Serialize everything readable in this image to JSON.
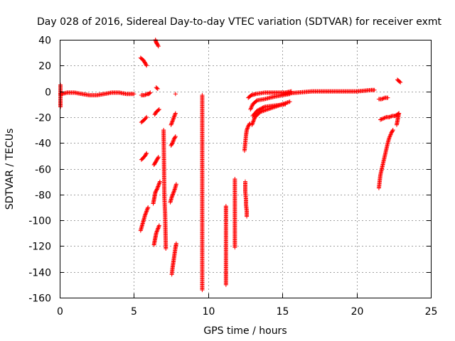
{
  "chart_data": {
    "type": "scatter",
    "title": "Day 028 of 2016, Sidereal Day-to-day VTEC variation (SDTVAR) for receiver exmt",
    "xlabel": "GPS time / hours",
    "ylabel": "SDTVAR / TECUs",
    "xlim": [
      0,
      25
    ],
    "ylim": [
      -160,
      40
    ],
    "xticks": [
      0,
      5,
      10,
      15,
      20,
      25
    ],
    "yticks": [
      -160,
      -140,
      -120,
      -100,
      -80,
      -60,
      -40,
      -20,
      0,
      20,
      40
    ],
    "grid": true,
    "marker": "+",
    "color": "#ff0000",
    "segments": [
      {
        "x": [
          0.05,
          0.15,
          0.5,
          1.0,
          1.5,
          2.0,
          2.5,
          3.0,
          3.5,
          4.0,
          4.5,
          5.0
        ],
        "y": [
          -2,
          -2,
          -1,
          -1,
          -2,
          -3,
          -3,
          -2,
          -1,
          -1,
          -2,
          -2
        ]
      },
      {
        "x": [
          0.05,
          0.05,
          0.05,
          0.05
        ],
        "y": [
          5,
          -5,
          -9,
          -12
        ]
      },
      {
        "x": [
          5.5,
          5.7,
          5.9,
          6.0,
          6.1
        ],
        "y": [
          -3,
          -3,
          -2,
          -2,
          -1
        ]
      },
      {
        "x": [
          5.45,
          5.55,
          5.65,
          5.75,
          5.85
        ],
        "y": [
          26,
          25,
          24,
          22,
          20
        ]
      },
      {
        "x": [
          6.45,
          6.5,
          6.55,
          6.65
        ],
        "y": [
          40,
          38,
          37,
          35
        ]
      },
      {
        "x": [
          5.5,
          5.6,
          5.7,
          5.85
        ],
        "y": [
          -24,
          -23,
          -22,
          -20
        ]
      },
      {
        "x": [
          5.5,
          5.6,
          5.75,
          5.85
        ],
        "y": [
          -53,
          -52,
          -50,
          -48
        ]
      },
      {
        "x": [
          5.45,
          5.55,
          5.65,
          5.75,
          5.85,
          5.95
        ],
        "y": [
          -108,
          -104,
          -100,
          -96,
          -93,
          -90
        ]
      },
      {
        "x": [
          6.5,
          6.6
        ],
        "y": [
          3,
          2
        ]
      },
      {
        "x": [
          6.4,
          6.5,
          6.6,
          6.7
        ],
        "y": [
          -18,
          -16,
          -15,
          -14
        ]
      },
      {
        "x": [
          6.35,
          6.45,
          6.55,
          6.65
        ],
        "y": [
          -57,
          -55,
          -53,
          -51
        ]
      },
      {
        "x": [
          6.3,
          6.35,
          6.4,
          6.45,
          6.55,
          6.65,
          6.75
        ],
        "y": [
          -87,
          -84,
          -81,
          -78,
          -76,
          -73,
          -70
        ]
      },
      {
        "x": [
          6.35,
          6.4,
          6.45,
          6.5,
          6.6,
          6.7
        ],
        "y": [
          -119,
          -116,
          -113,
          -110,
          -107,
          -104
        ]
      },
      {
        "x": [
          7.0,
          7.05,
          7.1,
          7.15
        ],
        "y": [
          -30,
          -81,
          -95,
          -122
        ]
      },
      {
        "x": [
          7.5,
          7.6,
          7.7,
          7.8
        ],
        "y": [
          -26,
          -23,
          -20,
          -17
        ]
      },
      {
        "x": [
          7.5,
          7.6,
          7.7,
          7.8
        ],
        "y": [
          -42,
          -40,
          -37,
          -35
        ]
      },
      {
        "x": [
          7.45,
          7.55,
          7.65,
          7.75,
          7.85
        ],
        "y": [
          -86,
          -82,
          -79,
          -76,
          -72
        ]
      },
      {
        "x": [
          7.55,
          7.6,
          7.65,
          7.7,
          7.75,
          7.8,
          7.85
        ],
        "y": [
          -142,
          -137,
          -133,
          -129,
          -125,
          -121,
          -118
        ]
      },
      {
        "x": [
          7.8
        ],
        "y": [
          -2
        ]
      },
      {
        "x": [
          9.6,
          9.6,
          9.6,
          9.6,
          9.6,
          9.6
        ],
        "y": [
          -3,
          -24,
          -52,
          -64,
          -149,
          -154
        ]
      },
      {
        "x": [
          11.2,
          11.2,
          11.2,
          11.2,
          11.2,
          11.2,
          11.2
        ],
        "y": [
          -89,
          -93,
          -98,
          -134,
          -140,
          -145,
          -150
        ]
      },
      {
        "x": [
          11.8,
          11.8,
          11.8
        ],
        "y": [
          -68,
          -116,
          -121
        ]
      },
      {
        "x": [
          12.5,
          12.5,
          12.5,
          12.55,
          12.55,
          12.6,
          12.6
        ],
        "y": [
          -70,
          -74,
          -78,
          -84,
          -88,
          -93,
          -97
        ]
      },
      {
        "x": [
          12.45,
          12.5,
          12.55,
          12.6,
          12.7,
          12.8
        ],
        "y": [
          -46,
          -40,
          -34,
          -30,
          -27,
          -25
        ]
      },
      {
        "x": [
          12.7,
          12.9,
          13.2,
          13.8,
          14.5,
          15.2,
          15.6
        ],
        "y": [
          -5,
          -3,
          -2,
          -1,
          -1,
          -1,
          0
        ]
      },
      {
        "x": [
          12.85,
          13.0,
          13.3,
          13.8,
          14.5,
          15.0,
          15.5
        ],
        "y": [
          -14,
          -10,
          -7,
          -6,
          -4,
          -3,
          -2
        ]
      },
      {
        "x": [
          12.95,
          13.15,
          13.5,
          14.0,
          14.5,
          15.0,
          15.5
        ],
        "y": [
          -26,
          -20,
          -16,
          -14,
          -12,
          -10,
          -8
        ]
      },
      {
        "x": [
          13.0,
          13.3,
          13.8,
          14.5,
          15.2
        ],
        "y": [
          -19,
          -15,
          -12,
          -11,
          -10
        ]
      },
      {
        "x": [
          15.0,
          16.0,
          17.0,
          18.0,
          19.0,
          20.0,
          21.0,
          21.2
        ],
        "y": [
          -2,
          -1,
          0,
          0,
          0,
          0,
          1,
          1
        ]
      },
      {
        "x": [
          21.5,
          21.7,
          21.9,
          22.1
        ],
        "y": [
          -6,
          -6,
          -5,
          -5
        ]
      },
      {
        "x": [
          21.5,
          21.55,
          21.6,
          21.7,
          21.8,
          21.9,
          22.0,
          22.1,
          22.2,
          22.35,
          22.45
        ],
        "y": [
          -75,
          -70,
          -65,
          -60,
          -55,
          -50,
          -45,
          -40,
          -36,
          -32,
          -30
        ]
      },
      {
        "x": [
          21.6,
          21.8,
          22.0,
          22.2,
          22.4,
          22.6,
          22.75,
          22.85
        ],
        "y": [
          -22,
          -21,
          -20,
          -20,
          -19,
          -19,
          -18,
          -17
        ]
      },
      {
        "x": [
          22.7,
          22.75,
          22.8,
          22.85
        ],
        "y": [
          -26,
          -23,
          -20,
          -17
        ]
      },
      {
        "x": [
          22.75,
          22.85,
          22.95
        ],
        "y": [
          9,
          8,
          7
        ]
      }
    ]
  }
}
